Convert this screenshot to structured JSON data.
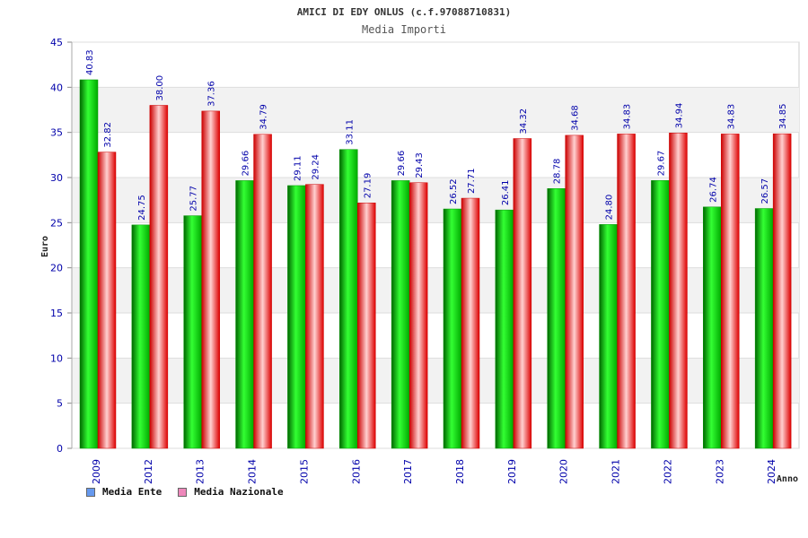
{
  "chart_data": {
    "type": "bar",
    "title": "AMICI DI EDY ONLUS (c.f.97088710831)",
    "subtitle": "Media Importi",
    "ylabel": "Euro",
    "xlabel": "Anno",
    "ylim": [
      0,
      45
    ],
    "ytick_step": 5,
    "categories": [
      "2009",
      "2012",
      "2013",
      "2014",
      "2015",
      "2016",
      "2017",
      "2018",
      "2019",
      "2020",
      "2021",
      "2022",
      "2023",
      "2024"
    ],
    "series": [
      {
        "name": "Media Ente",
        "color": "#00cc00",
        "legend_color": "#6699ee",
        "values": [
          40.83,
          24.75,
          25.77,
          29.66,
          29.11,
          33.11,
          29.66,
          26.52,
          26.41,
          28.78,
          24.8,
          29.67,
          26.74,
          26.57
        ]
      },
      {
        "name": "Media Nazionale",
        "color": "#ee1111",
        "legend_color": "#ee88bb",
        "values": [
          32.82,
          38.0,
          37.36,
          34.79,
          29.24,
          27.19,
          29.43,
          27.71,
          34.32,
          34.68,
          34.83,
          34.94,
          34.83,
          34.85
        ]
      }
    ],
    "grid": true,
    "legend_position": "bottom-left"
  }
}
